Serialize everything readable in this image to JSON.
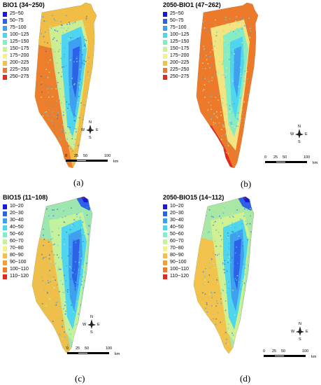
{
  "panels": [
    {
      "title": "BIO1 (34~250)",
      "caption": "(a)",
      "palette": "bio1",
      "legend": [
        {
          "label": "25~50",
          "color": "#1a1ad6"
        },
        {
          "label": "50~75",
          "color": "#2b62e8"
        },
        {
          "label": "75~100",
          "color": "#3fa0f0"
        },
        {
          "label": "100~125",
          "color": "#4fd6ee"
        },
        {
          "label": "125~150",
          "color": "#86ecc4"
        },
        {
          "label": "150~175",
          "color": "#c8f29a"
        },
        {
          "label": "175~200",
          "color": "#f4f08a"
        },
        {
          "label": "200~225",
          "color": "#f4c048"
        },
        {
          "label": "225~250",
          "color": "#ec7a2a"
        },
        {
          "label": "250~275",
          "color": "#e02a20"
        }
      ]
    },
    {
      "title": "2050-BIO1 (47~262)",
      "caption": "(b)",
      "palette": "bio1_2050",
      "legend": [
        {
          "label": "25~50",
          "color": "#1a1ad6"
        },
        {
          "label": "50~75",
          "color": "#2b62e8"
        },
        {
          "label": "75~100",
          "color": "#3fa0f0"
        },
        {
          "label": "100~125",
          "color": "#4fd6ee"
        },
        {
          "label": "125~150",
          "color": "#86ecc4"
        },
        {
          "label": "150~175",
          "color": "#c8f29a"
        },
        {
          "label": "175~200",
          "color": "#f4f08a"
        },
        {
          "label": "200~225",
          "color": "#f4c048"
        },
        {
          "label": "225~250",
          "color": "#ec7a2a"
        },
        {
          "label": "250~275",
          "color": "#e02a20"
        }
      ]
    },
    {
      "title": "BIO15 (11~108)",
      "caption": "(c)",
      "palette": "bio15",
      "legend": [
        {
          "label": "10~20",
          "color": "#1a1ad6"
        },
        {
          "label": "20~30",
          "color": "#2b62e8"
        },
        {
          "label": "30~40",
          "color": "#3fa0f0"
        },
        {
          "label": "40~50",
          "color": "#4fd6ee"
        },
        {
          "label": "50~60",
          "color": "#86ecc4"
        },
        {
          "label": "60~70",
          "color": "#c8f29a"
        },
        {
          "label": "70~80",
          "color": "#f4f08a"
        },
        {
          "label": "80~90",
          "color": "#f4c048"
        },
        {
          "label": "90~100",
          "color": "#f0a038"
        },
        {
          "label": "100~110",
          "color": "#ec7a2a"
        },
        {
          "label": "110~120",
          "color": "#e02a20"
        }
      ]
    },
    {
      "title": "2050-BIO15 (14~112)",
      "caption": "(d)",
      "palette": "bio15_2050",
      "legend": [
        {
          "label": "10~20",
          "color": "#1a1ad6"
        },
        {
          "label": "20~30",
          "color": "#2b62e8"
        },
        {
          "label": "30~40",
          "color": "#3fa0f0"
        },
        {
          "label": "40~50",
          "color": "#4fd6ee"
        },
        {
          "label": "50~60",
          "color": "#86ecc4"
        },
        {
          "label": "60~70",
          "color": "#c8f29a"
        },
        {
          "label": "70~80",
          "color": "#f4f08a"
        },
        {
          "label": "80~90",
          "color": "#f4c048"
        },
        {
          "label": "90~100",
          "color": "#f0a038"
        },
        {
          "label": "100~110",
          "color": "#ec7a2a"
        },
        {
          "label": "110~120",
          "color": "#e02a20"
        }
      ]
    }
  ],
  "compass": {
    "n": "N",
    "s": "S",
    "e": "E",
    "w": "W"
  },
  "scale": {
    "t0": "0",
    "t1": "25",
    "t2": "50",
    "t3": "100",
    "unit": "km"
  }
}
